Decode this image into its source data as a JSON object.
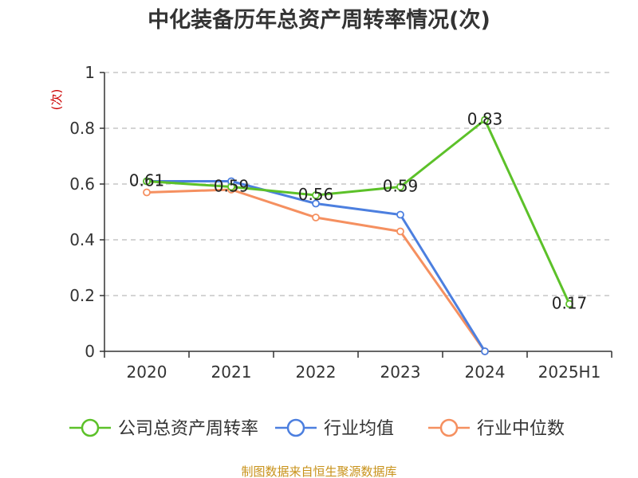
{
  "title": "中化装备历年总资产周转率情况(次)",
  "unit_label": "(次)",
  "source": "制图数据来自恒生聚源数据库",
  "chart_data": {
    "type": "line",
    "title": "中化装备历年总资产周转率情况(次)",
    "x": [
      "2020",
      "2021",
      "2022",
      "2023",
      "2024",
      "2025H1"
    ],
    "ylim": [
      0,
      1
    ],
    "yticks": [
      0,
      0.2,
      0.4,
      0.6,
      0.8,
      1
    ],
    "ytick_labels": [
      "0",
      "0.2",
      "0.4",
      "0.6",
      "0.8",
      "1"
    ],
    "grid": "horizontal-dashed",
    "legend": "bottom",
    "series": [
      {
        "name": "公司总资产周转率",
        "color": "#5cc129",
        "values": [
          0.61,
          0.59,
          0.56,
          0.59,
          0.83,
          0.17
        ],
        "labels": [
          "0.61",
          "0.59",
          "0.56",
          "0.59",
          "0.83",
          "0.17"
        ]
      },
      {
        "name": "行业均值",
        "color": "#4c7fdf",
        "values": [
          0.61,
          0.61,
          0.53,
          0.49,
          0.0,
          null
        ]
      },
      {
        "name": "行业中位数",
        "color": "#f59060",
        "values": [
          0.57,
          0.58,
          0.48,
          0.43,
          0.0,
          null
        ]
      }
    ]
  }
}
